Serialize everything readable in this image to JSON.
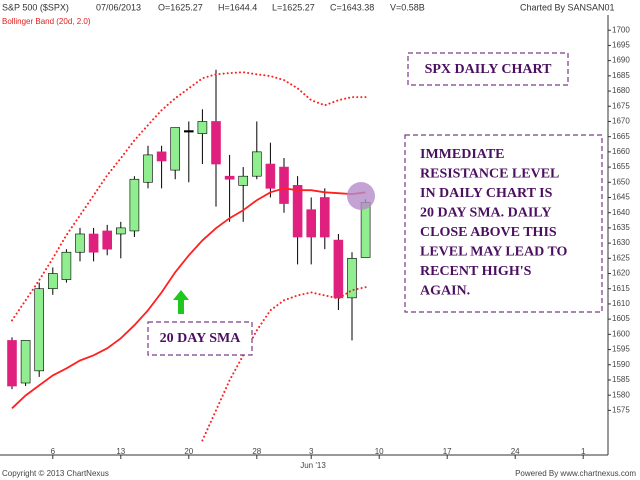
{
  "header": {
    "title": "S&P 500 ($SPX)",
    "date": "07/06/2013",
    "open": "O=1625.27",
    "high": "H=1644.4",
    "low": "L=1625.27",
    "close": "C=1643.38",
    "volume": "V=0.58B",
    "credit": "Charted By SANSAN01"
  },
  "footer": {
    "copyright": "Copyright © 2013 ChartNexus",
    "powered": "Powered By www.chartnexus.com"
  },
  "chart_data": {
    "type": "candlestick",
    "indicator_label": "Bollinger Band (20d, 2.0)",
    "month_label": "Jun '13",
    "categories": [
      null,
      null,
      null,
      "6",
      null,
      null,
      null,
      null,
      "13",
      null,
      null,
      null,
      null,
      "20",
      null,
      null,
      null,
      null,
      "28",
      null,
      null,
      null,
      "3",
      null,
      null,
      null,
      null,
      "10",
      null,
      null,
      null,
      null,
      "17",
      null,
      null,
      null,
      null,
      "24",
      null,
      null,
      null,
      null,
      "1",
      null
    ],
    "open": [
      1598,
      1584,
      1588,
      1615,
      1618,
      1627,
      1633,
      1634,
      1633,
      1634,
      1650,
      1660,
      1654,
      1667,
      1666,
      1670,
      1652,
      1649,
      1652,
      1656,
      1655,
      1649,
      1641,
      1645,
      1631,
      1612,
      1625.27,
      null,
      null,
      null,
      null,
      null,
      null,
      null,
      null,
      null,
      null,
      null,
      null,
      null,
      null,
      null,
      null,
      null
    ],
    "high": [
      1599,
      1598,
      1617,
      1622,
      1628,
      1635,
      1635,
      1636,
      1637,
      1652,
      1662,
      1662,
      1668,
      1670,
      1674,
      1687,
      1659,
      1655,
      1670,
      1663,
      1658,
      1652,
      1645,
      1648,
      1633,
      1627,
      1644.4,
      null,
      null,
      null,
      null,
      null,
      null,
      null,
      null,
      null,
      null,
      null,
      null,
      null,
      null,
      null,
      null,
      null
    ],
    "low": [
      1582,
      1583,
      1586,
      1613,
      1617,
      1624,
      1624,
      1626,
      1625,
      1632,
      1648,
      1648,
      1651,
      1650,
      1656,
      1642,
      1637,
      1637,
      1651,
      1645,
      1640,
      1623,
      1623,
      1628,
      1608,
      1598,
      1625.27,
      null,
      null,
      null,
      null,
      null,
      null,
      null,
      null,
      null,
      null,
      null,
      null,
      null,
      null,
      null,
      null,
      null
    ],
    "close": [
      1583,
      1598,
      1615,
      1620,
      1627,
      1633,
      1627,
      1628,
      1635,
      1651,
      1659,
      1657,
      1668,
      1667,
      1670,
      1656,
      1651,
      1652,
      1660,
      1648,
      1643,
      1632,
      1632,
      1632,
      1612,
      1625,
      1643.38,
      null,
      null,
      null,
      null,
      null,
      null,
      null,
      null,
      null,
      null,
      null,
      null,
      null,
      null,
      null,
      null,
      null
    ],
    "up_color": "#90ee90",
    "down_color": "#e0207f",
    "doji_color": "#000000",
    "overlays": [
      {
        "color": "#ff2020",
        "style": "dotted",
        "values": [
          1604.6,
          1611.2,
          1617.8,
          1625.0,
          1632.6,
          1639.1,
          1645.7,
          1652.3,
          1657.9,
          1663.8,
          1668.8,
          1673.7,
          1677.6,
          1680.9,
          1684.2,
          1685.5,
          1685.9,
          1686.2,
          1685.5,
          1684.9,
          1683.6,
          1680.9,
          1677.0,
          1675.3,
          1677.0,
          1678.0,
          1678.0,
          null,
          null,
          null,
          null,
          null,
          null,
          null,
          null,
          null,
          null,
          null,
          null,
          null,
          null,
          null,
          null,
          null
        ]
      },
      {
        "color": "#ff2020",
        "style": "solid",
        "values": [
          1575.7,
          1579.9,
          1583.2,
          1586.5,
          1588.8,
          1591.4,
          1593.1,
          1595.4,
          1598.7,
          1603.0,
          1607.9,
          1613.8,
          1620.4,
          1626.0,
          1630.9,
          1634.9,
          1638.2,
          1640.8,
          1644.1,
          1646.7,
          1648.0,
          1647.4,
          1647.4,
          1646.7,
          1646.4,
          1646.1,
          1646.7,
          null,
          null,
          null,
          null,
          null,
          null,
          null,
          null,
          null,
          null,
          null,
          null,
          null,
          null,
          null,
          null,
          null
        ]
      },
      {
        "color": "#ff2020",
        "style": "dotted",
        "values": [
          null,
          null,
          null,
          null,
          null,
          null,
          null,
          null,
          null,
          null,
          null,
          null,
          null,
          null,
          1565.1,
          1575.0,
          1584.9,
          1593.1,
          1601.3,
          1607.9,
          1611.2,
          1612.8,
          1613.8,
          1612.8,
          1611.8,
          1614.5,
          1615.5,
          null,
          null,
          null,
          null,
          null,
          null,
          null,
          null,
          null,
          null,
          null,
          null,
          null,
          null,
          null,
          null,
          null
        ]
      }
    ],
    "ylim": [
      1560,
      1705
    ],
    "yticks": [
      1575,
      1580,
      1585,
      1590,
      1595,
      1600,
      1605,
      1610,
      1615,
      1620,
      1625,
      1630,
      1635,
      1640,
      1645,
      1650,
      1655,
      1660,
      1665,
      1670,
      1675,
      1680,
      1685,
      1690,
      1695,
      1700
    ],
    "annotations": {
      "title_box": "SPX DAILY CHART",
      "note_lines": [
        "IMMEDIATE",
        "RESISTANCE LEVEL",
        "IN DAILY CHART IS",
        "20 DAY SMA. DAILY",
        "CLOSE ABOVE THIS",
        "LEVEL MAY LEAD TO",
        "RECENT HIGH'S",
        "AGAIN."
      ],
      "sma_box": "20 DAY SMA"
    }
  }
}
